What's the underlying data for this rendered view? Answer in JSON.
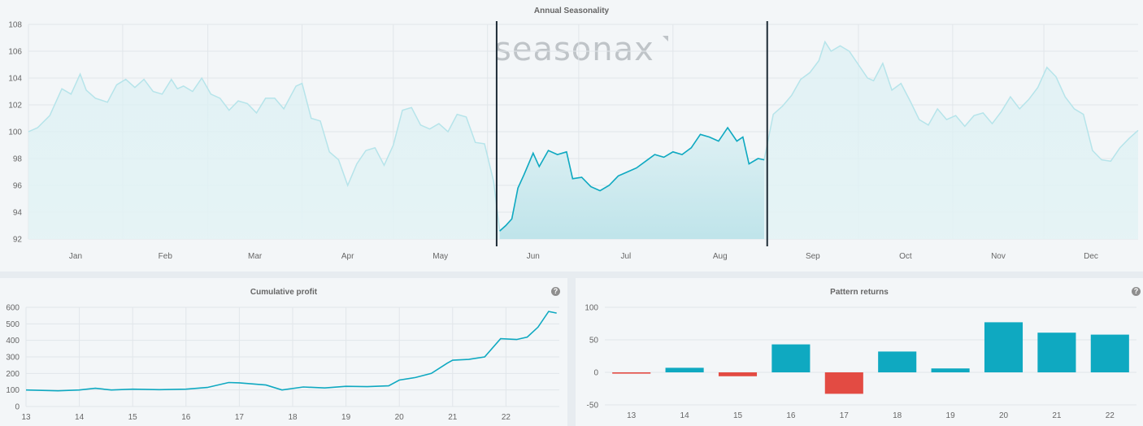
{
  "colors": {
    "accent": "#0fa9c1",
    "faint": "#b6e4ea",
    "negative": "#e34b43",
    "window": "#1d2b35"
  },
  "seasonal": {
    "title": "Annual Seasonality",
    "logo": "seasonax",
    "chart_data": {
      "type": "line",
      "title": "Annual Seasonality",
      "months": [
        "Jan",
        "Feb",
        "Mar",
        "Apr",
        "May",
        "Jun",
        "Jul",
        "Aug",
        "Sep",
        "Oct",
        "Nov",
        "Dec"
      ],
      "yticks": [
        92,
        94,
        96,
        98,
        100,
        102,
        104,
        106,
        108
      ],
      "ylim": [
        92,
        108
      ],
      "highlight_window": {
        "start_day": 155,
        "end_day": 244
      },
      "points": [
        [
          1,
          100
        ],
        [
          4,
          100.3
        ],
        [
          8,
          101.2
        ],
        [
          12,
          103.2
        ],
        [
          15,
          102.8
        ],
        [
          18,
          104.3
        ],
        [
          20,
          103.1
        ],
        [
          23,
          102.5
        ],
        [
          27,
          102.2
        ],
        [
          30,
          103.5
        ],
        [
          33,
          103.9
        ],
        [
          36,
          103.3
        ],
        [
          39,
          103.9
        ],
        [
          42,
          103
        ],
        [
          45,
          102.8
        ],
        [
          48,
          103.9
        ],
        [
          50,
          103.2
        ],
        [
          52,
          103.4
        ],
        [
          55,
          103
        ],
        [
          58,
          104
        ],
        [
          61,
          102.8
        ],
        [
          64,
          102.5
        ],
        [
          67,
          101.6
        ],
        [
          70,
          102.3
        ],
        [
          73,
          102.1
        ],
        [
          76,
          101.4
        ],
        [
          79,
          102.5
        ],
        [
          82,
          102.5
        ],
        [
          85,
          101.7
        ],
        [
          89,
          103.4
        ],
        [
          91,
          103.6
        ],
        [
          94,
          101
        ],
        [
          97,
          100.8
        ],
        [
          100,
          98.5
        ],
        [
          103,
          97.9
        ],
        [
          106,
          96
        ],
        [
          109,
          97.6
        ],
        [
          112,
          98.6
        ],
        [
          115,
          98.8
        ],
        [
          118,
          97.5
        ],
        [
          121,
          99
        ],
        [
          124,
          101.6
        ],
        [
          127,
          101.8
        ],
        [
          130,
          100.5
        ],
        [
          133,
          100.2
        ],
        [
          136,
          100.6
        ],
        [
          139,
          100
        ],
        [
          142,
          101.3
        ],
        [
          145,
          101.1
        ],
        [
          148,
          99.2
        ],
        [
          151,
          99.1
        ],
        [
          154,
          96.3
        ],
        [
          156,
          92.6
        ],
        [
          158,
          93
        ],
        [
          160,
          93.5
        ],
        [
          162,
          95.8
        ],
        [
          164,
          96.8
        ],
        [
          167,
          98.4
        ],
        [
          169,
          97.4
        ],
        [
          172,
          98.6
        ],
        [
          175,
          98.3
        ],
        [
          178,
          98.5
        ],
        [
          180,
          96.5
        ],
        [
          183,
          96.6
        ],
        [
          186,
          95.9
        ],
        [
          189,
          95.6
        ],
        [
          192,
          96
        ],
        [
          195,
          96.7
        ],
        [
          198,
          97
        ],
        [
          201,
          97.3
        ],
        [
          204,
          97.8
        ],
        [
          207,
          98.3
        ],
        [
          210,
          98.1
        ],
        [
          213,
          98.5
        ],
        [
          216,
          98.3
        ],
        [
          219,
          98.8
        ],
        [
          222,
          99.8
        ],
        [
          225,
          99.6
        ],
        [
          228,
          99.3
        ],
        [
          231,
          100.3
        ],
        [
          234,
          99.3
        ],
        [
          236,
          99.6
        ],
        [
          238,
          97.6
        ],
        [
          241,
          98
        ],
        [
          243,
          97.9
        ],
        [
          246,
          101.3
        ],
        [
          249,
          101.9
        ],
        [
          252,
          102.7
        ],
        [
          255,
          103.9
        ],
        [
          258,
          104.4
        ],
        [
          261,
          105.3
        ],
        [
          263,
          106.7
        ],
        [
          265,
          106
        ],
        [
          268,
          106.4
        ],
        [
          271,
          106
        ],
        [
          274,
          105
        ],
        [
          277,
          104
        ],
        [
          279,
          103.8
        ],
        [
          282,
          105.1
        ],
        [
          285,
          103.1
        ],
        [
          288,
          103.6
        ],
        [
          291,
          102.3
        ],
        [
          294,
          100.9
        ],
        [
          297,
          100.5
        ],
        [
          300,
          101.7
        ],
        [
          303,
          100.9
        ],
        [
          306,
          101.2
        ],
        [
          309,
          100.4
        ],
        [
          312,
          101.2
        ],
        [
          315,
          101.4
        ],
        [
          318,
          100.6
        ],
        [
          321,
          101.5
        ],
        [
          324,
          102.6
        ],
        [
          327,
          101.7
        ],
        [
          330,
          102.4
        ],
        [
          333,
          103.3
        ],
        [
          336,
          104.8
        ],
        [
          339,
          104.1
        ],
        [
          342,
          102.6
        ],
        [
          345,
          101.7
        ],
        [
          348,
          101.3
        ],
        [
          351,
          98.6
        ],
        [
          354,
          97.9
        ],
        [
          357,
          97.8
        ],
        [
          360,
          98.8
        ],
        [
          363,
          99.5
        ],
        [
          366,
          100.1
        ]
      ]
    }
  },
  "cumulative": {
    "title": "Cumulative profit",
    "help": "?",
    "chart_data": {
      "type": "line",
      "title": "Cumulative profit",
      "x_labels": [
        "13",
        "14",
        "15",
        "16",
        "17",
        "18",
        "19",
        "20",
        "21",
        "22"
      ],
      "yticks": [
        0,
        100,
        200,
        300,
        400,
        500,
        600
      ],
      "ylim": [
        0,
        600
      ],
      "points": [
        [
          13,
          100
        ],
        [
          13.6,
          95
        ],
        [
          14,
          100
        ],
        [
          14.3,
          110
        ],
        [
          14.6,
          100
        ],
        [
          15,
          105
        ],
        [
          15.5,
          102
        ],
        [
          16,
          105
        ],
        [
          16.4,
          115
        ],
        [
          16.8,
          145
        ],
        [
          17,
          143
        ],
        [
          17.5,
          130
        ],
        [
          17.8,
          100
        ],
        [
          18.2,
          118
        ],
        [
          18.6,
          112
        ],
        [
          19,
          122
        ],
        [
          19.4,
          120
        ],
        [
          19.8,
          125
        ],
        [
          20,
          160
        ],
        [
          20.3,
          175
        ],
        [
          20.6,
          200
        ],
        [
          20.9,
          262
        ],
        [
          21,
          280
        ],
        [
          21.3,
          285
        ],
        [
          21.6,
          300
        ],
        [
          21.9,
          410
        ],
        [
          22.2,
          405
        ],
        [
          22.4,
          420
        ],
        [
          22.6,
          480
        ],
        [
          22.8,
          575
        ],
        [
          22.95,
          565
        ]
      ]
    }
  },
  "pattern": {
    "title": "Pattern returns",
    "help": "?",
    "chart_data": {
      "type": "bar",
      "title": "Pattern returns",
      "categories": [
        "13",
        "14",
        "15",
        "16",
        "17",
        "18",
        "19",
        "20",
        "21",
        "22"
      ],
      "values": [
        -2,
        7,
        -6,
        43,
        -33,
        32,
        6,
        77,
        61,
        58
      ],
      "yticks": [
        -50,
        0,
        50,
        100
      ],
      "ylim": [
        -50,
        100
      ]
    }
  }
}
